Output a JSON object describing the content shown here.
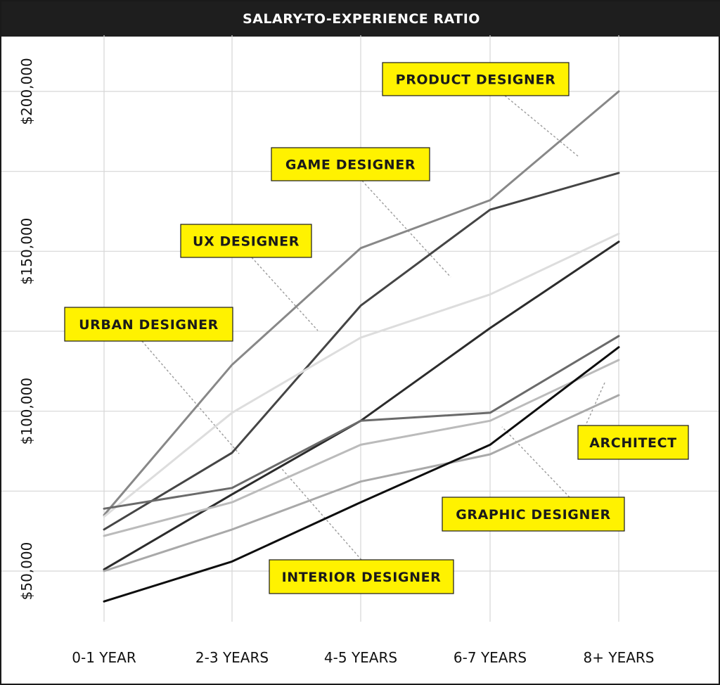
{
  "chart_data": {
    "type": "line",
    "title": "SALARY-TO-EXPERIENCE RATIO",
    "xlabel": "",
    "ylabel": "",
    "categories": [
      "0-1 YEAR",
      "2-3 YEARS",
      "4-5 YEARS",
      "6-7 YEARS",
      "8+ YEARS"
    ],
    "yticks": [
      {
        "value": 50000,
        "label": "$50,000"
      },
      {
        "value": 100000,
        "label": "$100,000"
      },
      {
        "value": 150000,
        "label": "$150,000"
      },
      {
        "value": 200000,
        "label": "$200,000"
      }
    ],
    "ylim": [
      32000,
      218000
    ],
    "grid": true,
    "series": [
      {
        "name": "PRODUCT DESIGNER",
        "color": "#888888",
        "values": [
          67500,
          114500,
          151000,
          166000,
          200000
        ]
      },
      {
        "name": "GAME DESIGNER",
        "color": "#454545",
        "values": [
          63000,
          87000,
          133000,
          163000,
          174500
        ]
      },
      {
        "name": "UX DESIGNER",
        "color": "#dddddd",
        "values": [
          67000,
          99500,
          123000,
          136500,
          155500
        ]
      },
      {
        "name": "URBAN DESIGNER",
        "color": "#2c2c2c",
        "values": [
          50500,
          74000,
          97000,
          126000,
          153000
        ]
      },
      {
        "name": "ARCHITECT",
        "color": "#6a6a6a",
        "values": [
          69500,
          76000,
          97000,
          99500,
          123500
        ]
      },
      {
        "name": "GRAPHIC DESIGNER",
        "color": "#bbbbbb",
        "values": [
          61000,
          71500,
          89500,
          97000,
          116000
        ]
      },
      {
        "name": "INTERIOR DESIGNER",
        "color": "#a9a9a9",
        "values": [
          50000,
          63000,
          78000,
          86500,
          105000
        ]
      },
      {
        "name": "",
        "color": "#0e0e0e",
        "values": [
          40500,
          53000,
          71500,
          89500,
          120000
        ]
      }
    ],
    "annotations": [
      {
        "text": "PRODUCT DESIGNER",
        "series": "PRODUCT DESIGNER"
      },
      {
        "text": "GAME DESIGNER",
        "series": "GAME DESIGNER"
      },
      {
        "text": "UX DESIGNER",
        "series": "UX DESIGNER"
      },
      {
        "text": "URBAN DESIGNER",
        "series": "URBAN DESIGNER"
      },
      {
        "text": "ARCHITECT",
        "series": "ARCHITECT"
      },
      {
        "text": "GRAPHIC DESIGNER",
        "series": "GRAPHIC DESIGNER"
      },
      {
        "text": "INTERIOR DESIGNER",
        "series": "INTERIOR DESIGNER"
      }
    ],
    "callout_color": "#fff200"
  }
}
